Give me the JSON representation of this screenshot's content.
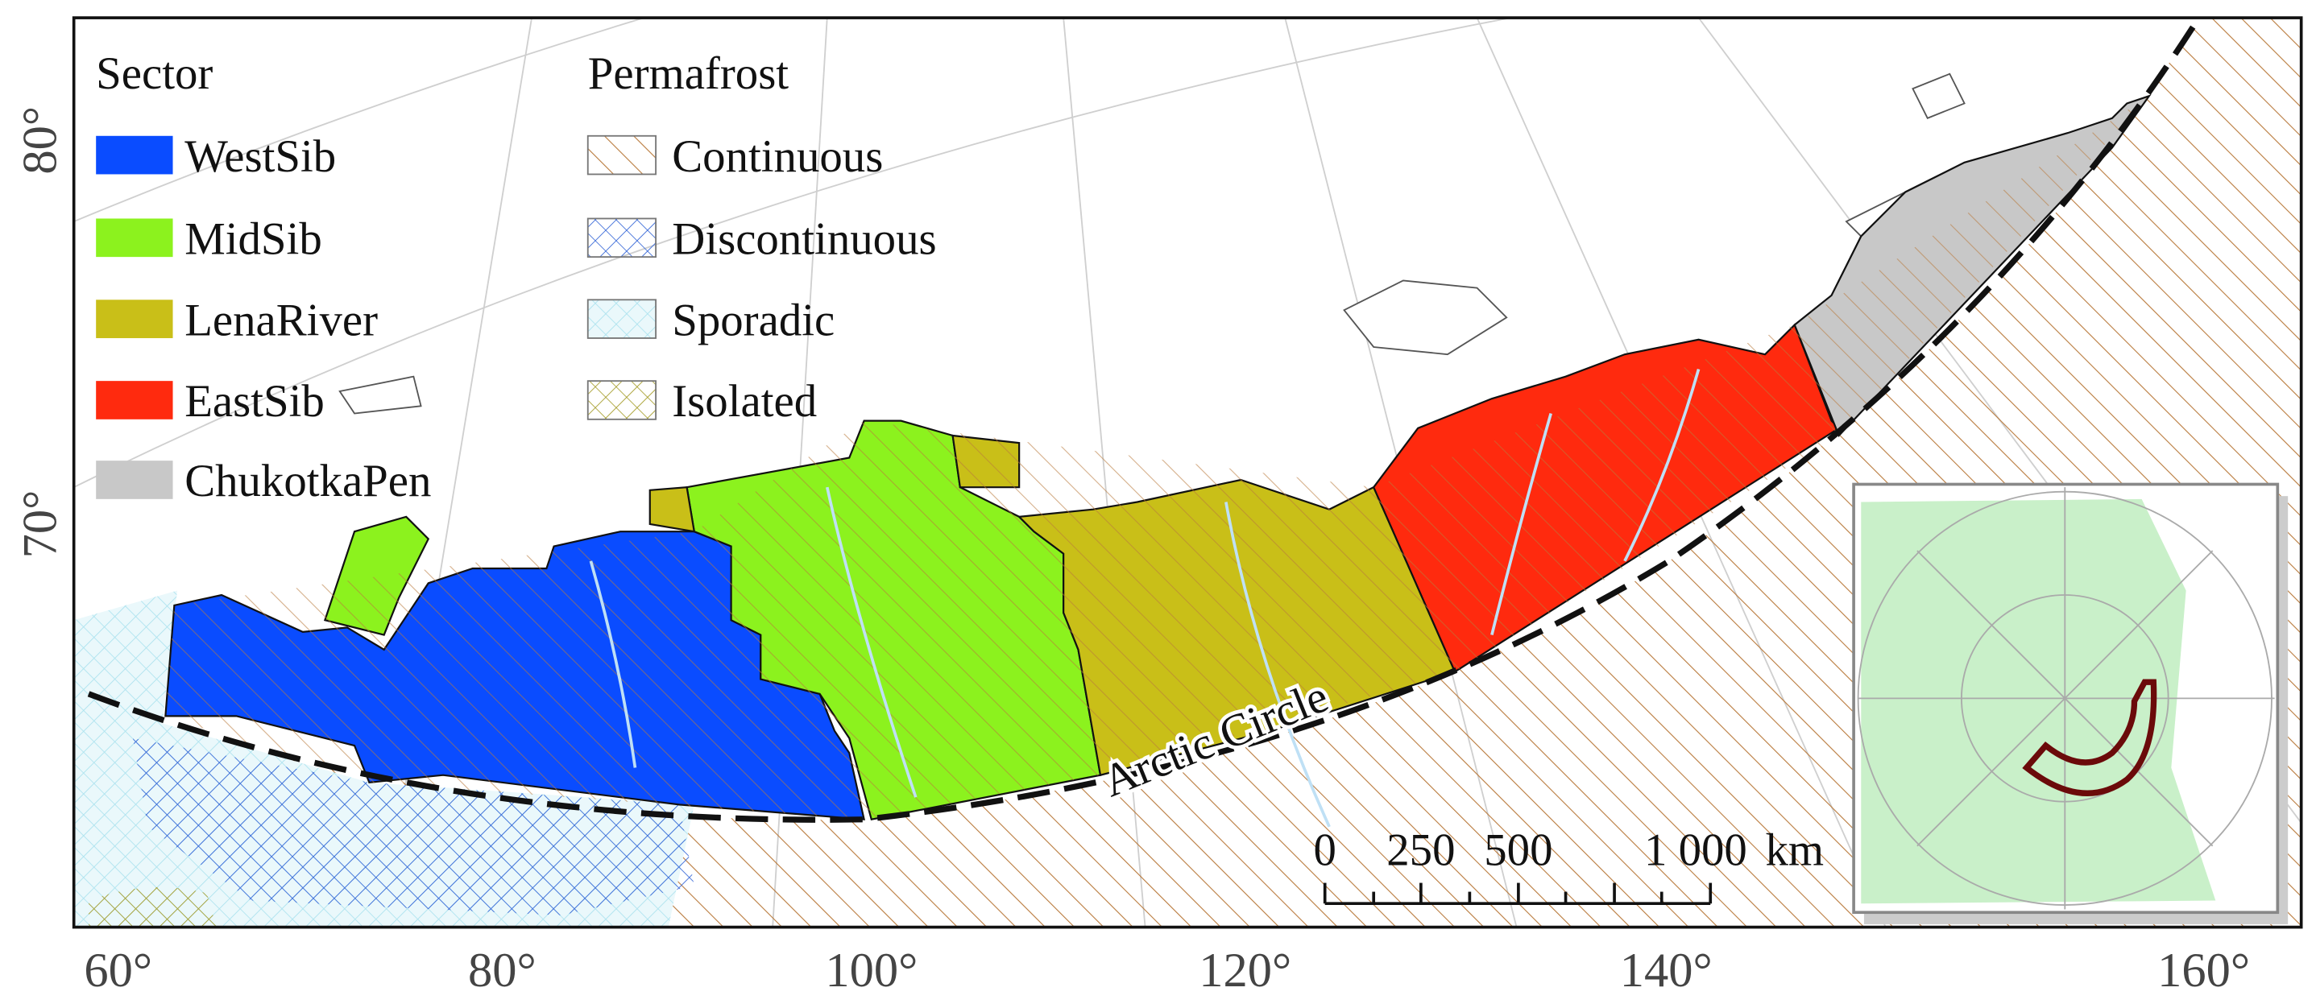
{
  "legend": {
    "sector_title": "Sector",
    "sectors": [
      {
        "label": "WestSib",
        "color": "#0a4cff"
      },
      {
        "label": "MidSib",
        "color": "#8cf21e"
      },
      {
        "label": "LenaRiver",
        "color": "#c9bf18"
      },
      {
        "label": "EastSib",
        "color": "#ff2a0e"
      },
      {
        "label": "ChukotkaPen",
        "color": "#c8c8c8"
      }
    ],
    "permafrost_title": "Permafrost",
    "permafrost": [
      "Continuous",
      "Discontinuous",
      "Sporadic",
      "Isolated"
    ]
  },
  "axes": {
    "longitude": [
      "60°",
      "80°",
      "100°",
      "120°",
      "140°",
      "160°"
    ],
    "latitude": [
      "70°",
      "80°"
    ]
  },
  "annotations": {
    "arctic_circle": "Arctic Circle"
  },
  "scale_bar": {
    "labels": [
      "0",
      "250",
      "500",
      "1 000",
      "km"
    ]
  }
}
